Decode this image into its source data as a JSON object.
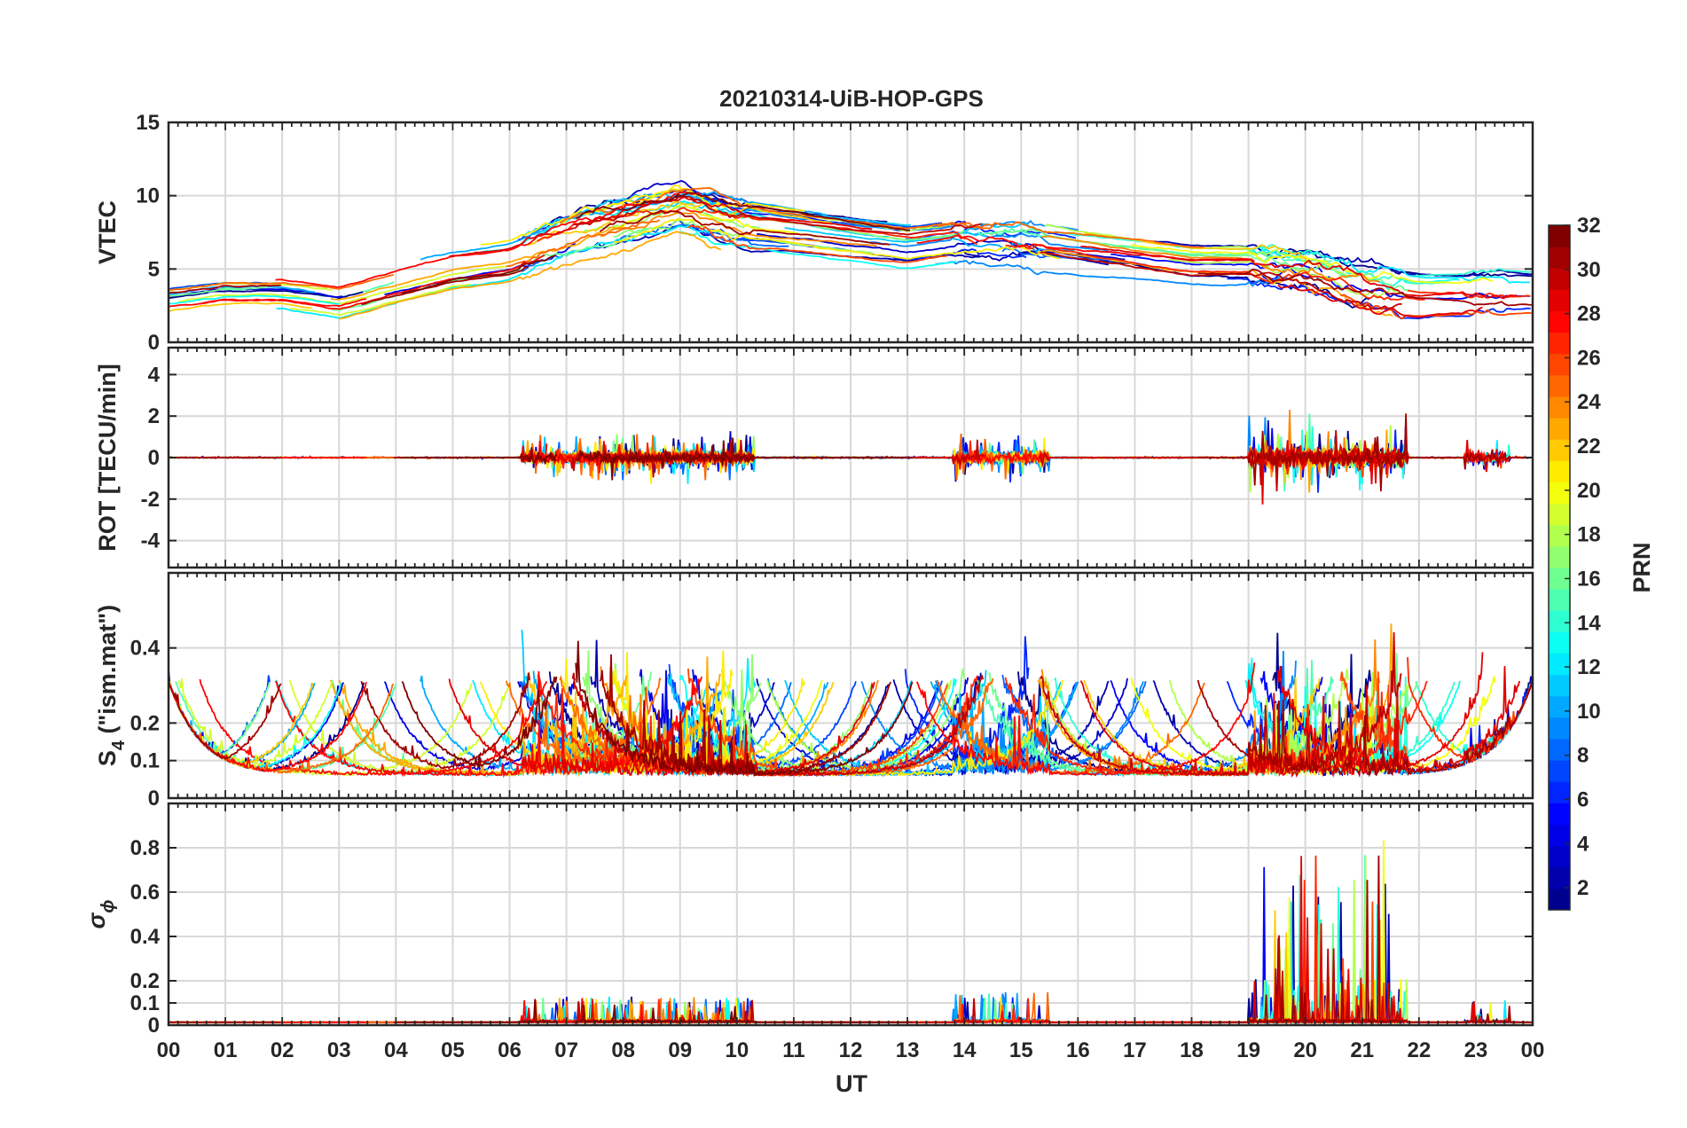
{
  "chart_data": {
    "type": "line",
    "title": "20210314-UiB-HOP-GPS",
    "xlabel": "UT",
    "x_ticks": [
      "00",
      "01",
      "02",
      "03",
      "04",
      "05",
      "06",
      "07",
      "08",
      "09",
      "10",
      "11",
      "12",
      "13",
      "14",
      "15",
      "16",
      "17",
      "18",
      "19",
      "20",
      "21",
      "22",
      "23",
      "00"
    ],
    "xlim_hours": [
      0,
      24
    ],
    "grid": true,
    "colorbar": {
      "label": "PRN",
      "range": [
        1,
        32
      ],
      "ticks": [
        "2",
        "4",
        "6",
        "8",
        "10",
        "12",
        "14",
        "16",
        "18",
        "20",
        "22",
        "24",
        "26",
        "28",
        "30",
        "32"
      ],
      "colormap": "jet",
      "colors": [
        "#00008f",
        "#0000ff",
        "#0080ff",
        "#00ffff",
        "#80ff80",
        "#ffff00",
        "#ff8000",
        "#ff0000",
        "#800000"
      ]
    },
    "panels": [
      {
        "id": "vtec",
        "ylabel": "VTEC",
        "ylim": [
          0,
          15
        ],
        "y_ticks": [
          "0",
          "5",
          "10",
          "15"
        ],
        "series_envelope": {
          "hours": [
            0,
            1,
            2,
            3,
            4,
            5,
            6,
            7,
            8,
            9,
            10,
            11,
            12,
            13,
            14,
            15,
            16,
            17,
            18,
            19,
            20,
            21,
            22,
            23,
            24
          ],
          "typical_vtec": [
            3,
            3.5,
            3.5,
            3,
            4,
            5,
            5.5,
            7,
            8,
            9,
            8,
            7.5,
            7,
            6.5,
            7,
            7,
            6.5,
            6,
            5.5,
            5.5,
            5,
            4,
            3.5,
            3.5,
            3.5
          ]
        }
      },
      {
        "id": "rot",
        "ylabel": "ROT [TECU/min]",
        "ylim": [
          -5.3,
          5.3
        ],
        "y_ticks": [
          "-4",
          "-2",
          "0",
          "2",
          "4"
        ]
      },
      {
        "id": "s4",
        "ylabel": "S",
        "ylabel_sub": "4",
        "ylabel_rest": " (\"ism.mat\")",
        "ylim": [
          0,
          0.6
        ],
        "y_ticks": [
          "0",
          "0.1",
          "0.2",
          "0.4"
        ]
      },
      {
        "id": "sigma",
        "ylabel": "σ",
        "ylabel_sub": "ϕ",
        "ylim": [
          0,
          1
        ],
        "y_ticks": [
          "0",
          "0.1",
          "0.2",
          "0.4",
          "0.6",
          "0.8"
        ]
      }
    ]
  }
}
